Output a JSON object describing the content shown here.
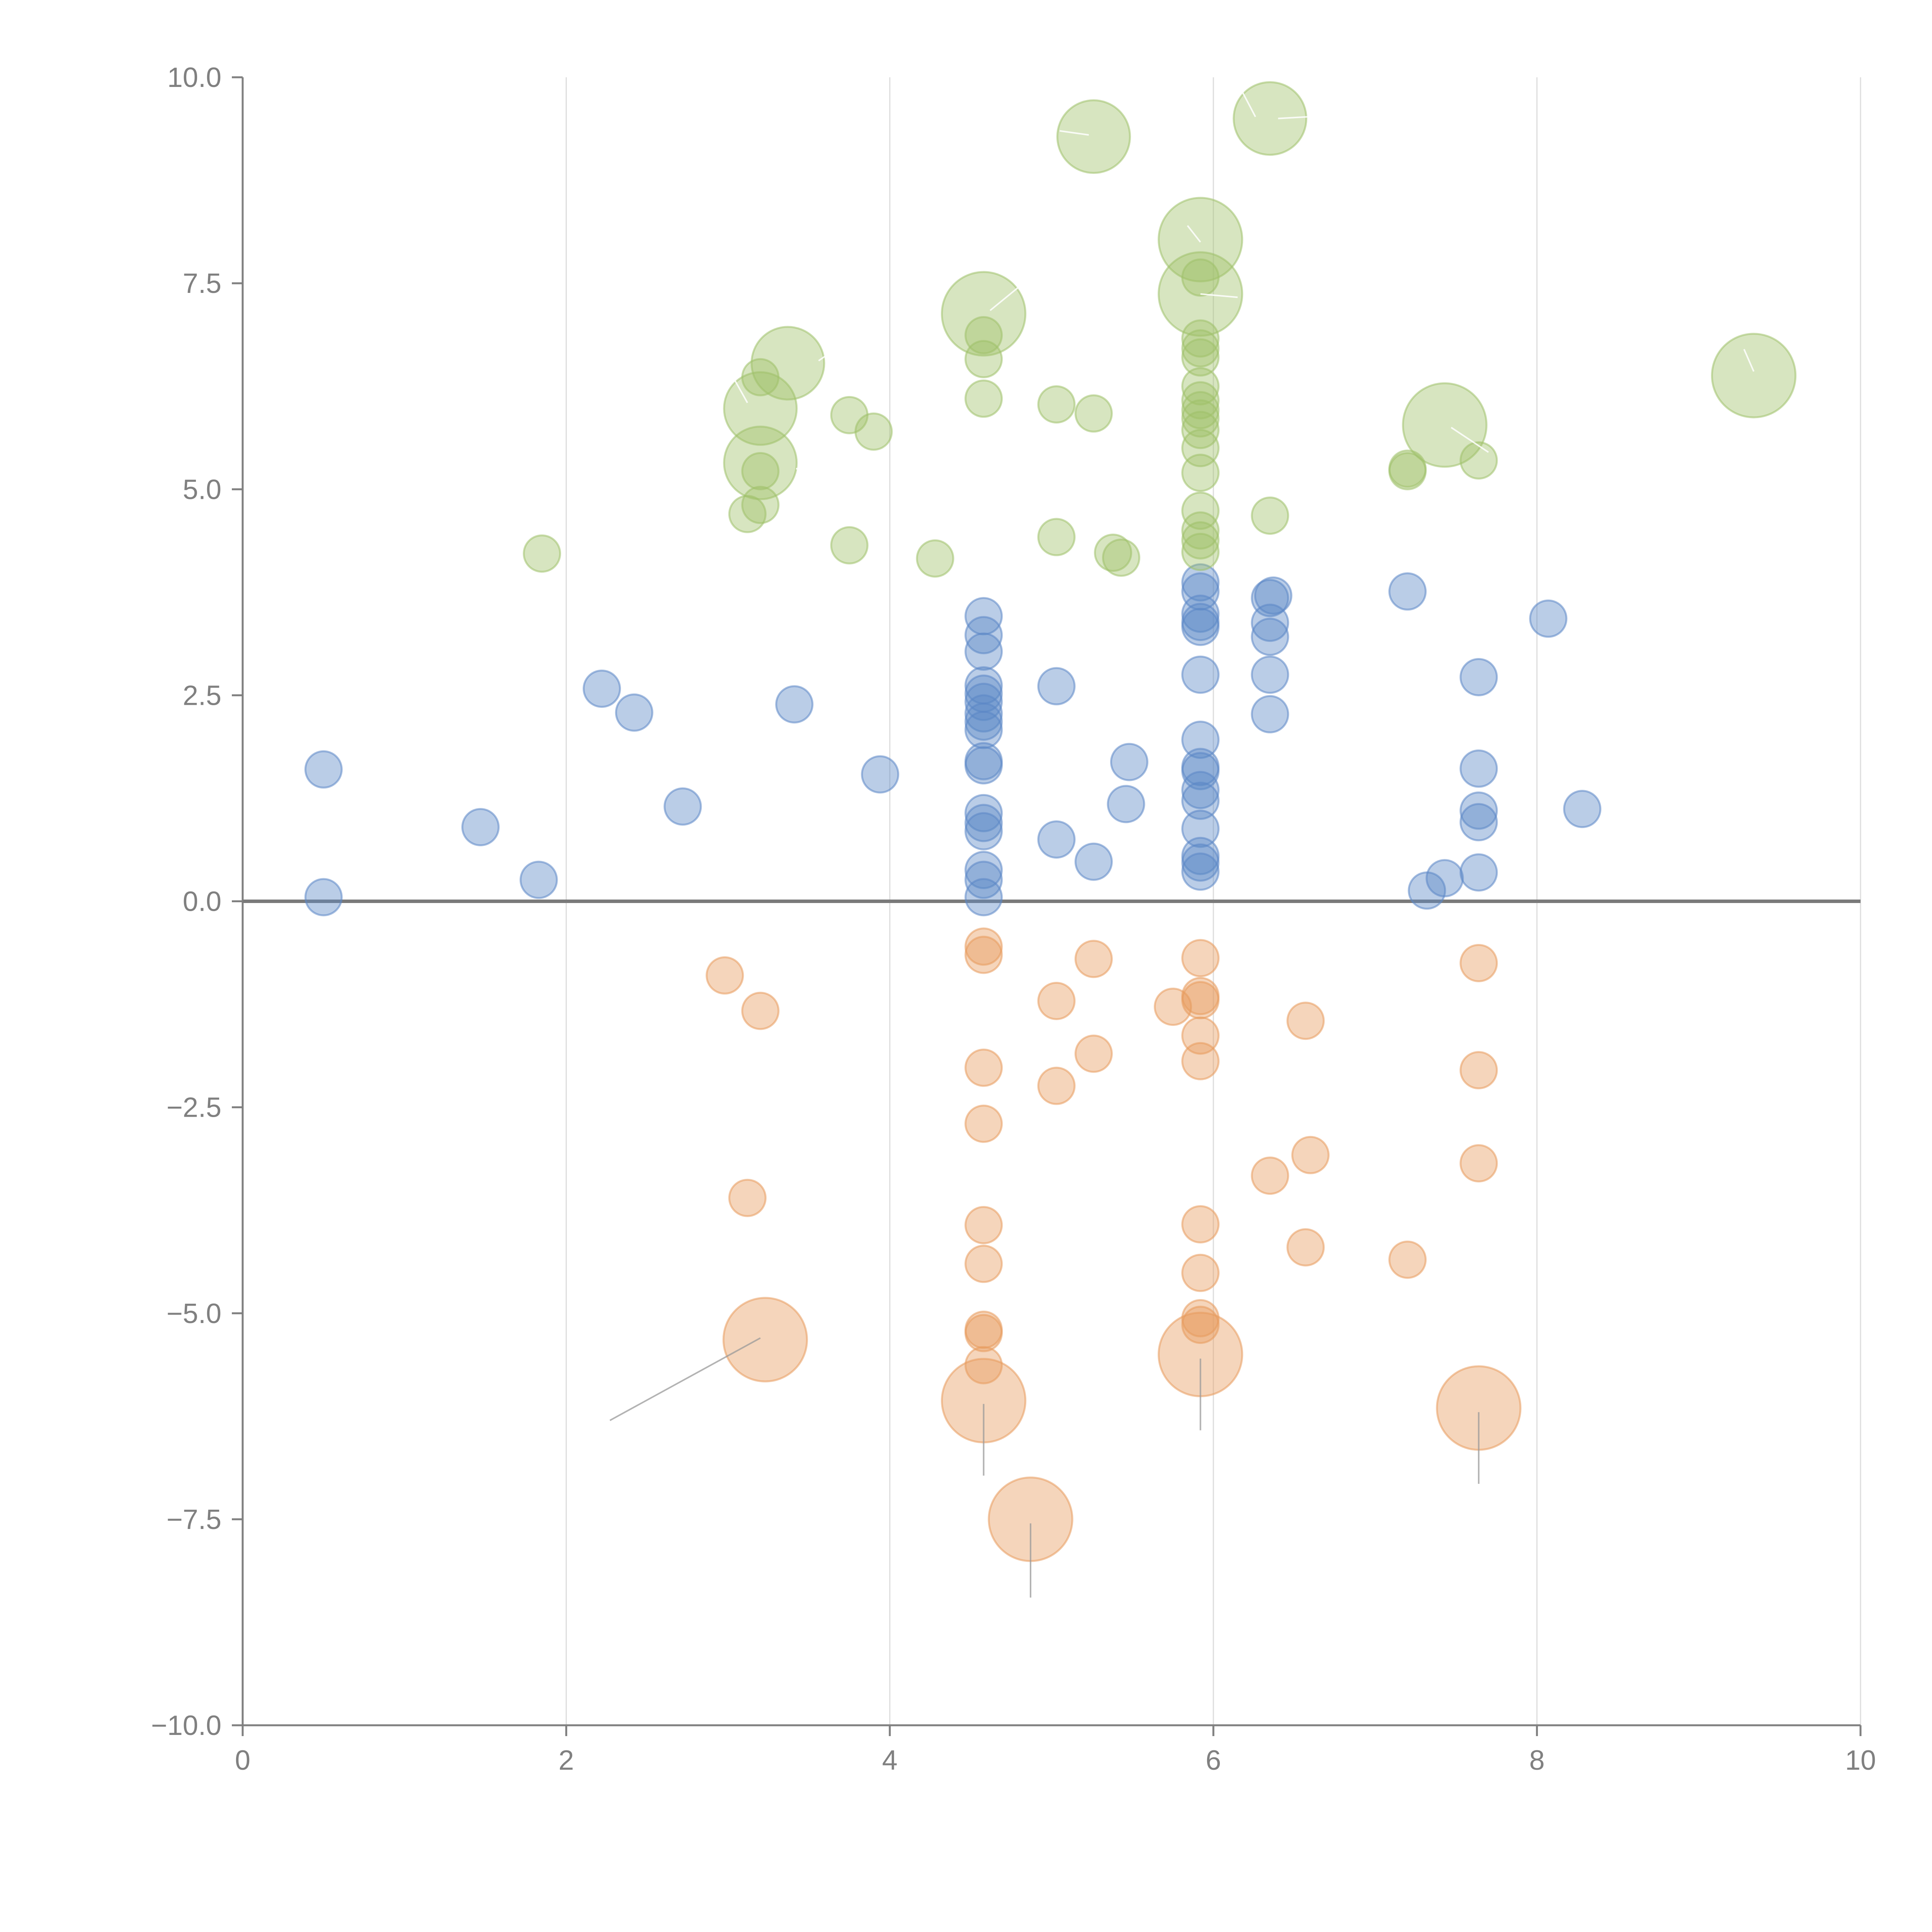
{
  "chart_data": {
    "type": "scatter",
    "title": "",
    "xlabel": "",
    "ylabel": "",
    "xlim": [
      0,
      10
    ],
    "ylim": [
      -10,
      10
    ],
    "x_ticks": [
      0,
      2,
      4,
      6,
      8,
      10
    ],
    "x_tick_labels": [
      "0",
      "2",
      "4",
      "6",
      "8",
      "10"
    ],
    "y_ticks": [
      10,
      7.5,
      5,
      2.5,
      0,
      -2.5,
      -5,
      -7.5,
      -10
    ],
    "y_tick_labels": [
      "10.0",
      "7.5",
      "5.0",
      "2.5",
      "0.0",
      "−2.5",
      "−5.0",
      "−7.5",
      "−10.0"
    ],
    "grid": "vertical",
    "zero_line": 0,
    "series": [
      {
        "name": "blue",
        "color": "#5b87c6",
        "points": [
          [
            0.5,
            1.6,
            1
          ],
          [
            0.5,
            0.05,
            1
          ],
          [
            1.47,
            0.9,
            1
          ],
          [
            1.83,
            0.26,
            1
          ],
          [
            2.22,
            2.58,
            1
          ],
          [
            2.42,
            2.29,
            1
          ],
          [
            2.72,
            1.15,
            1
          ],
          [
            3.41,
            2.39,
            1
          ],
          [
            3.94,
            1.54,
            1
          ],
          [
            4.58,
            3.46,
            1
          ],
          [
            4.58,
            3.23,
            1
          ],
          [
            4.58,
            3.03,
            1
          ],
          [
            4.58,
            2.62,
            1
          ],
          [
            4.58,
            2.52,
            1
          ],
          [
            4.58,
            2.42,
            1
          ],
          [
            4.58,
            2.28,
            1
          ],
          [
            4.58,
            2.18,
            1
          ],
          [
            4.58,
            2.08,
            1
          ],
          [
            4.58,
            1.7,
            1
          ],
          [
            4.58,
            1.65,
            1
          ],
          [
            4.58,
            1.07,
            1
          ],
          [
            4.58,
            0.95,
            1
          ],
          [
            4.58,
            0.85,
            1
          ],
          [
            4.58,
            0.38,
            1
          ],
          [
            4.58,
            0.26,
            1
          ],
          [
            4.58,
            0.05,
            1
          ],
          [
            5.03,
            2.61,
            1
          ],
          [
            5.03,
            0.75,
            1
          ],
          [
            5.26,
            0.48,
            1
          ],
          [
            5.46,
            1.18,
            1
          ],
          [
            5.48,
            1.69,
            1
          ],
          [
            5.92,
            3.87,
            1
          ],
          [
            5.92,
            3.76,
            1
          ],
          [
            5.92,
            3.49,
            1
          ],
          [
            5.92,
            3.39,
            1
          ],
          [
            5.92,
            3.33,
            1
          ],
          [
            5.92,
            2.75,
            1
          ],
          [
            5.92,
            1.96,
            1
          ],
          [
            5.92,
            1.63,
            1
          ],
          [
            5.92,
            1.58,
            1
          ],
          [
            5.92,
            1.35,
            1
          ],
          [
            5.92,
            1.22,
            1
          ],
          [
            5.92,
            0.88,
            1
          ],
          [
            5.92,
            0.55,
            1
          ],
          [
            5.92,
            0.47,
            1
          ],
          [
            5.92,
            0.36,
            1
          ],
          [
            6.35,
            3.68,
            1
          ],
          [
            6.37,
            3.71,
            1
          ],
          [
            6.35,
            3.38,
            1
          ],
          [
            6.35,
            3.21,
            1
          ],
          [
            6.35,
            2.75,
            1
          ],
          [
            6.35,
            2.27,
            1
          ],
          [
            7.2,
            3.76,
            1
          ],
          [
            7.32,
            0.13,
            1
          ],
          [
            7.43,
            0.28,
            1
          ],
          [
            7.64,
            2.72,
            1
          ],
          [
            7.64,
            1.61,
            1
          ],
          [
            7.64,
            1.1,
            1
          ],
          [
            7.64,
            0.96,
            1
          ],
          [
            7.64,
            0.35,
            1
          ],
          [
            8.07,
            3.43,
            1
          ],
          [
            8.28,
            1.12,
            1
          ]
        ]
      },
      {
        "name": "green",
        "color": "#9fc16a",
        "points": [
          [
            1.85,
            4.22,
            1
          ],
          [
            3.12,
            4.7,
            1
          ],
          [
            3.2,
            4.81,
            1
          ],
          [
            3.2,
            5.22,
            1
          ],
          [
            3.2,
            6.36,
            1
          ],
          [
            3.2,
            5.98,
            2
          ],
          [
            3.2,
            5.32,
            2
          ],
          [
            3.37,
            6.53,
            2
          ],
          [
            3.75,
            5.9,
            1
          ],
          [
            3.9,
            5.7,
            1
          ],
          [
            3.75,
            4.32,
            1
          ],
          [
            4.28,
            4.16,
            1
          ],
          [
            4.58,
            7.13,
            2.3
          ],
          [
            4.58,
            6.87,
            1
          ],
          [
            4.58,
            6.58,
            1
          ],
          [
            4.58,
            6.1,
            1
          ],
          [
            5.03,
            6.03,
            1
          ],
          [
            5.26,
            5.92,
            1
          ],
          [
            5.03,
            4.42,
            1
          ],
          [
            5.38,
            4.23,
            1
          ],
          [
            5.43,
            4.17,
            1
          ],
          [
            5.26,
            9.28,
            2
          ],
          [
            5.92,
            8.03,
            2.3
          ],
          [
            5.92,
            7.37,
            2.3
          ],
          [
            5.92,
            7.57,
            1
          ],
          [
            5.92,
            6.83,
            1
          ],
          [
            5.92,
            6.71,
            1
          ],
          [
            5.92,
            6.6,
            1
          ],
          [
            5.92,
            6.25,
            1
          ],
          [
            5.92,
            6.08,
            1
          ],
          [
            5.92,
            5.96,
            1
          ],
          [
            5.92,
            5.86,
            1
          ],
          [
            5.92,
            5.72,
            1
          ],
          [
            5.92,
            5.5,
            1
          ],
          [
            5.92,
            5.2,
            1
          ],
          [
            5.92,
            4.74,
            1
          ],
          [
            5.92,
            4.5,
            1
          ],
          [
            5.92,
            4.38,
            1
          ],
          [
            5.92,
            4.24,
            1
          ],
          [
            6.35,
            9.5,
            2
          ],
          [
            6.35,
            4.68,
            1
          ],
          [
            7.2,
            5.25,
            1
          ],
          [
            7.2,
            5.22,
            1
          ],
          [
            7.43,
            5.78,
            2.3
          ],
          [
            7.64,
            5.35,
            1
          ],
          [
            9.34,
            6.38,
            2.3
          ]
        ]
      },
      {
        "name": "orange",
        "color": "#e89a5c",
        "points": [
          [
            2.98,
            -0.9,
            1
          ],
          [
            3.2,
            -1.33,
            1
          ],
          [
            3.12,
            -3.6,
            1
          ],
          [
            3.23,
            -5.32,
            2.3
          ],
          [
            4.58,
            -0.55,
            1
          ],
          [
            4.58,
            -0.65,
            1
          ],
          [
            4.58,
            -2.02,
            1
          ],
          [
            4.58,
            -2.7,
            1
          ],
          [
            4.58,
            -3.93,
            1
          ],
          [
            4.58,
            -4.4,
            1
          ],
          [
            4.58,
            -5.2,
            1
          ],
          [
            4.58,
            -5.24,
            1
          ],
          [
            4.58,
            -5.63,
            1
          ],
          [
            4.58,
            -6.06,
            2.3
          ],
          [
            4.87,
            -7.5,
            2.3
          ],
          [
            5.03,
            -1.21,
            1
          ],
          [
            5.03,
            -2.24,
            1
          ],
          [
            5.26,
            -0.7,
            1
          ],
          [
            5.26,
            -1.85,
            1
          ],
          [
            5.75,
            -1.28,
            1
          ],
          [
            5.92,
            -0.69,
            1
          ],
          [
            5.92,
            -1.15,
            1
          ],
          [
            5.92,
            -1.2,
            1
          ],
          [
            5.92,
            -1.63,
            1
          ],
          [
            5.92,
            -1.94,
            1
          ],
          [
            5.92,
            -3.92,
            1
          ],
          [
            5.92,
            -4.51,
            1
          ],
          [
            5.92,
            -5.06,
            1
          ],
          [
            5.92,
            -5.14,
            1
          ],
          [
            5.92,
            -5.5,
            2.3
          ],
          [
            6.35,
            -3.33,
            1
          ],
          [
            6.57,
            -1.45,
            1
          ],
          [
            6.57,
            -4.2,
            1
          ],
          [
            6.6,
            -3.08,
            1
          ],
          [
            7.2,
            -4.35,
            1
          ],
          [
            7.64,
            -0.75,
            1
          ],
          [
            7.64,
            -2.05,
            1
          ],
          [
            7.64,
            -3.18,
            1
          ],
          [
            7.64,
            -6.15,
            2.3
          ]
        ]
      }
    ],
    "annotations": [
      {
        "series": "orange",
        "from": [
          3.2,
          -5.3
        ],
        "to": [
          2.27,
          -6.3
        ]
      },
      {
        "series": "orange",
        "from": [
          4.58,
          -6.1
        ],
        "to": [
          4.58,
          -6.97
        ]
      },
      {
        "series": "orange",
        "from": [
          4.87,
          -7.55
        ],
        "to": [
          4.87,
          -8.45
        ]
      },
      {
        "series": "orange",
        "from": [
          5.92,
          -5.55
        ],
        "to": [
          5.92,
          -6.42
        ]
      },
      {
        "series": "orange",
        "from": [
          7.64,
          -6.2
        ],
        "to": [
          7.64,
          -7.07
        ]
      },
      {
        "series": "green",
        "from": [
          3.12,
          6.05
        ],
        "to": [
          3.02,
          6.4
        ]
      },
      {
        "series": "green",
        "from": [
          3.42,
          5.25
        ],
        "to": [
          3.6,
          5.23
        ]
      },
      {
        "series": "green",
        "from": [
          3.56,
          6.56
        ],
        "to": [
          3.75,
          6.82
        ]
      },
      {
        "series": "green",
        "from": [
          4.62,
          7.17
        ],
        "to": [
          4.9,
          7.62
        ]
      },
      {
        "series": "green",
        "from": [
          5.23,
          9.3
        ],
        "to": [
          5.05,
          9.35
        ]
      },
      {
        "series": "green",
        "from": [
          5.92,
          8.0
        ],
        "to": [
          5.84,
          8.2
        ]
      },
      {
        "series": "green",
        "from": [
          5.92,
          7.37
        ],
        "to": [
          6.15,
          7.33
        ]
      },
      {
        "series": "green",
        "from": [
          6.26,
          9.52
        ],
        "to": [
          6.18,
          9.82
        ]
      },
      {
        "series": "green",
        "from": [
          6.4,
          9.5
        ],
        "to": [
          6.58,
          9.52
        ]
      },
      {
        "series": "green",
        "from": [
          7.47,
          5.75
        ],
        "to": [
          7.7,
          5.45
        ]
      },
      {
        "series": "green",
        "from": [
          9.34,
          6.43
        ],
        "to": [
          9.28,
          6.7
        ]
      }
    ]
  }
}
